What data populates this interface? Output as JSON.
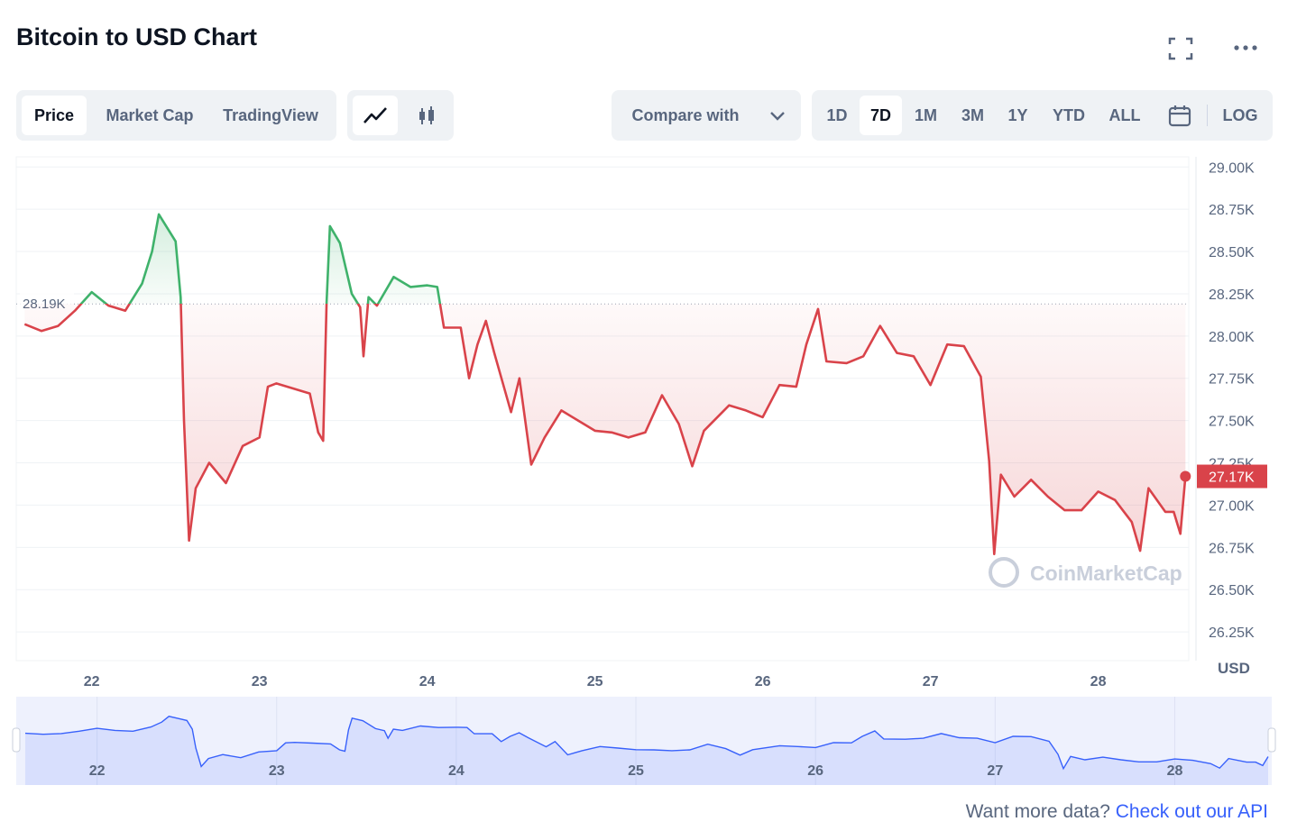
{
  "header": {
    "title": "Bitcoin to USD Chart"
  },
  "toolbar": {
    "tabs": [
      "Price",
      "Market Cap",
      "TradingView"
    ],
    "compare": "Compare with",
    "ranges": [
      "1D",
      "7D",
      "1M",
      "3M",
      "1Y",
      "YTD",
      "ALL"
    ],
    "log": "LOG"
  },
  "footer": {
    "text": "Want more data?",
    "link": "Check out our API"
  },
  "chart_data": {
    "type": "line",
    "y_label": "USD",
    "watermark": "CoinMarketCap",
    "color_up": "#3fb26b",
    "color_down": "#d9434a",
    "navigator_color": "#3861fb",
    "grid": true,
    "xlim": [
      21.55,
      28.54
    ],
    "xticks": [
      22,
      23,
      24,
      25,
      26,
      27,
      28
    ],
    "ylim": [
      26080,
      29060
    ],
    "yticks": [
      {
        "value": 26250,
        "label": "26.25K"
      },
      {
        "value": 26500,
        "label": "26.50K"
      },
      {
        "value": 26750,
        "label": "26.75K"
      },
      {
        "value": 27000,
        "label": "27.00K"
      },
      {
        "value": 27250,
        "label": "27.25K"
      },
      {
        "value": 27500,
        "label": "27.50K"
      },
      {
        "value": 27750,
        "label": "27.75K"
      },
      {
        "value": 28000,
        "label": "28.00K"
      },
      {
        "value": 28250,
        "label": "28.25K"
      },
      {
        "value": 28500,
        "label": "28.50K"
      },
      {
        "value": 28750,
        "label": "28.75K"
      },
      {
        "value": 29000,
        "label": "29.00K"
      }
    ],
    "baseline": {
      "value": 28190,
      "label": "28.19K"
    },
    "last_value_label": "27.17K",
    "x": [
      21.6,
      21.7,
      21.8,
      21.9,
      22.0,
      22.1,
      22.2,
      22.3,
      22.36,
      22.4,
      22.45,
      22.5,
      22.53,
      22.55,
      22.58,
      22.62,
      22.7,
      22.8,
      22.9,
      23.0,
      23.05,
      23.1,
      23.2,
      23.3,
      23.35,
      23.38,
      23.4,
      23.42,
      23.48,
      23.55,
      23.6,
      23.62,
      23.65,
      23.7,
      23.8,
      23.9,
      24.0,
      24.06,
      24.1,
      24.2,
      24.25,
      24.3,
      24.35,
      24.4,
      24.5,
      24.55,
      24.62,
      24.7,
      24.8,
      24.9,
      25.0,
      25.1,
      25.2,
      25.3,
      25.4,
      25.5,
      25.58,
      25.65,
      25.8,
      25.9,
      26.0,
      26.1,
      26.2,
      26.26,
      26.33,
      26.38,
      26.5,
      26.6,
      26.7,
      26.8,
      26.9,
      27.0,
      27.1,
      27.2,
      27.3,
      27.35,
      27.38,
      27.42,
      27.5,
      27.6,
      27.7,
      27.8,
      27.9,
      28.0,
      28.1,
      28.2,
      28.25,
      28.3,
      28.4,
      28.45,
      28.49,
      28.52
    ],
    "values": [
      28070,
      28030,
      28060,
      28150,
      28260,
      28180,
      28150,
      28310,
      28500,
      28720,
      28640,
      28560,
      28230,
      27500,
      26790,
      27100,
      27250,
      27130,
      27350,
      27400,
      27700,
      27720,
      27690,
      27660,
      27430,
      27380,
      28200,
      28650,
      28550,
      28250,
      28170,
      27880,
      28230,
      28180,
      28350,
      28290,
      28300,
      28290,
      28050,
      28050,
      27750,
      27950,
      28090,
      27900,
      27550,
      27750,
      27240,
      27400,
      27560,
      27500,
      27440,
      27430,
      27400,
      27430,
      27650,
      27480,
      27230,
      27440,
      27590,
      27560,
      27520,
      27710,
      27700,
      27950,
      28160,
      27850,
      27840,
      27880,
      28060,
      27900,
      27880,
      27710,
      27950,
      27940,
      27760,
      27260,
      26710,
      27180,
      27050,
      27150,
      27050,
      26970,
      26970,
      27080,
      27030,
      26900,
      26730,
      27100,
      26960,
      26960,
      26830,
      27170
    ]
  }
}
